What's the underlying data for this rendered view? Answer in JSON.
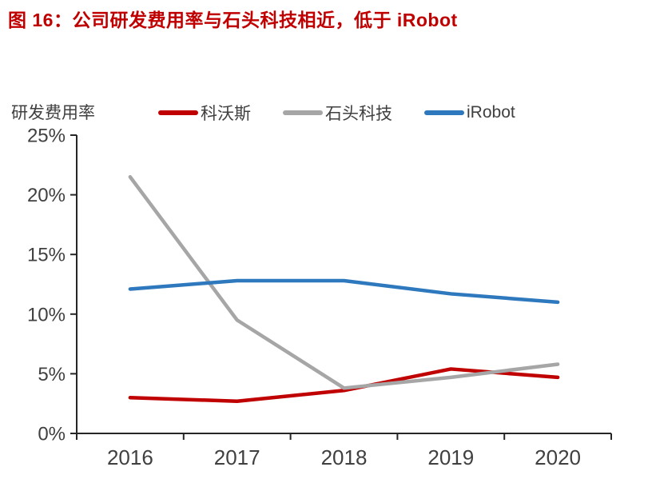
{
  "title": "图 16：公司研发费用率与石头科技相近，低于 iRobot",
  "y_axis_unit_label": "研发费用率",
  "colors": {
    "title": "#C00000",
    "axis": "#262626",
    "tick_label": "#404040",
    "series_kewosi": "#C00000",
    "series_shitou": "#A6A6A6",
    "series_irobot": "#2E78BE"
  },
  "chart_data": {
    "type": "line",
    "title": "图 16：公司研发费用率与石头科技相近，低于 iRobot",
    "categories": [
      "2016",
      "2017",
      "2018",
      "2019",
      "2020"
    ],
    "series": [
      {
        "name": "科沃斯",
        "color": "#C00000",
        "values": [
          3.0,
          2.7,
          3.6,
          5.4,
          4.7
        ]
      },
      {
        "name": "石头科技",
        "color": "#A6A6A6",
        "values": [
          21.5,
          9.5,
          3.8,
          4.7,
          5.8
        ]
      },
      {
        "name": "iRobot",
        "color": "#2E78BE",
        "values": [
          12.1,
          12.8,
          12.8,
          11.7,
          11.0
        ]
      }
    ],
    "xlabel": "",
    "ylabel": "研发费用率",
    "ylim": [
      0,
      25
    ],
    "y_ticks": [
      0,
      5,
      10,
      15,
      20,
      25
    ],
    "y_tick_suffix": "%",
    "grid": false,
    "legend_position": "top"
  }
}
